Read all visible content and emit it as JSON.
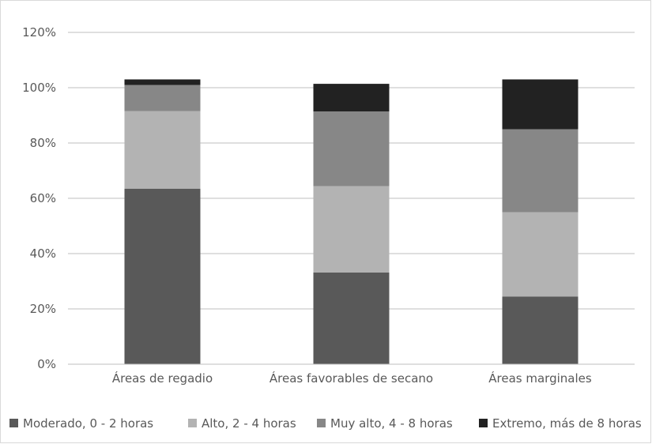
{
  "chart_data": {
    "type": "bar",
    "stacked": true,
    "categories": [
      "Áreas de regadio",
      "Áreas favorables de secano",
      "Áreas marginales"
    ],
    "series": [
      {
        "name": "Moderado, 0 - 2 horas",
        "color": "#595959",
        "values": [
          63.5,
          33.2,
          24.5
        ]
      },
      {
        "name": "Alto, 2 - 4 horas",
        "color": "#b3b3b3",
        "values": [
          28.0,
          31.2,
          30.5
        ]
      },
      {
        "name": "Muy alto, 4 - 8 horas",
        "color": "#878787",
        "values": [
          9.5,
          27.0,
          30.0
        ]
      },
      {
        "name": "Extremo, más de 8 horas",
        "color": "#222222",
        "values": [
          2.0,
          10.0,
          18.0
        ]
      }
    ],
    "y_ticks": [
      "0%",
      "20%",
      "40%",
      "60%",
      "80%",
      "100%",
      "120%"
    ],
    "ylim": [
      0,
      120
    ],
    "grid": true,
    "legend_position": "bottom"
  }
}
